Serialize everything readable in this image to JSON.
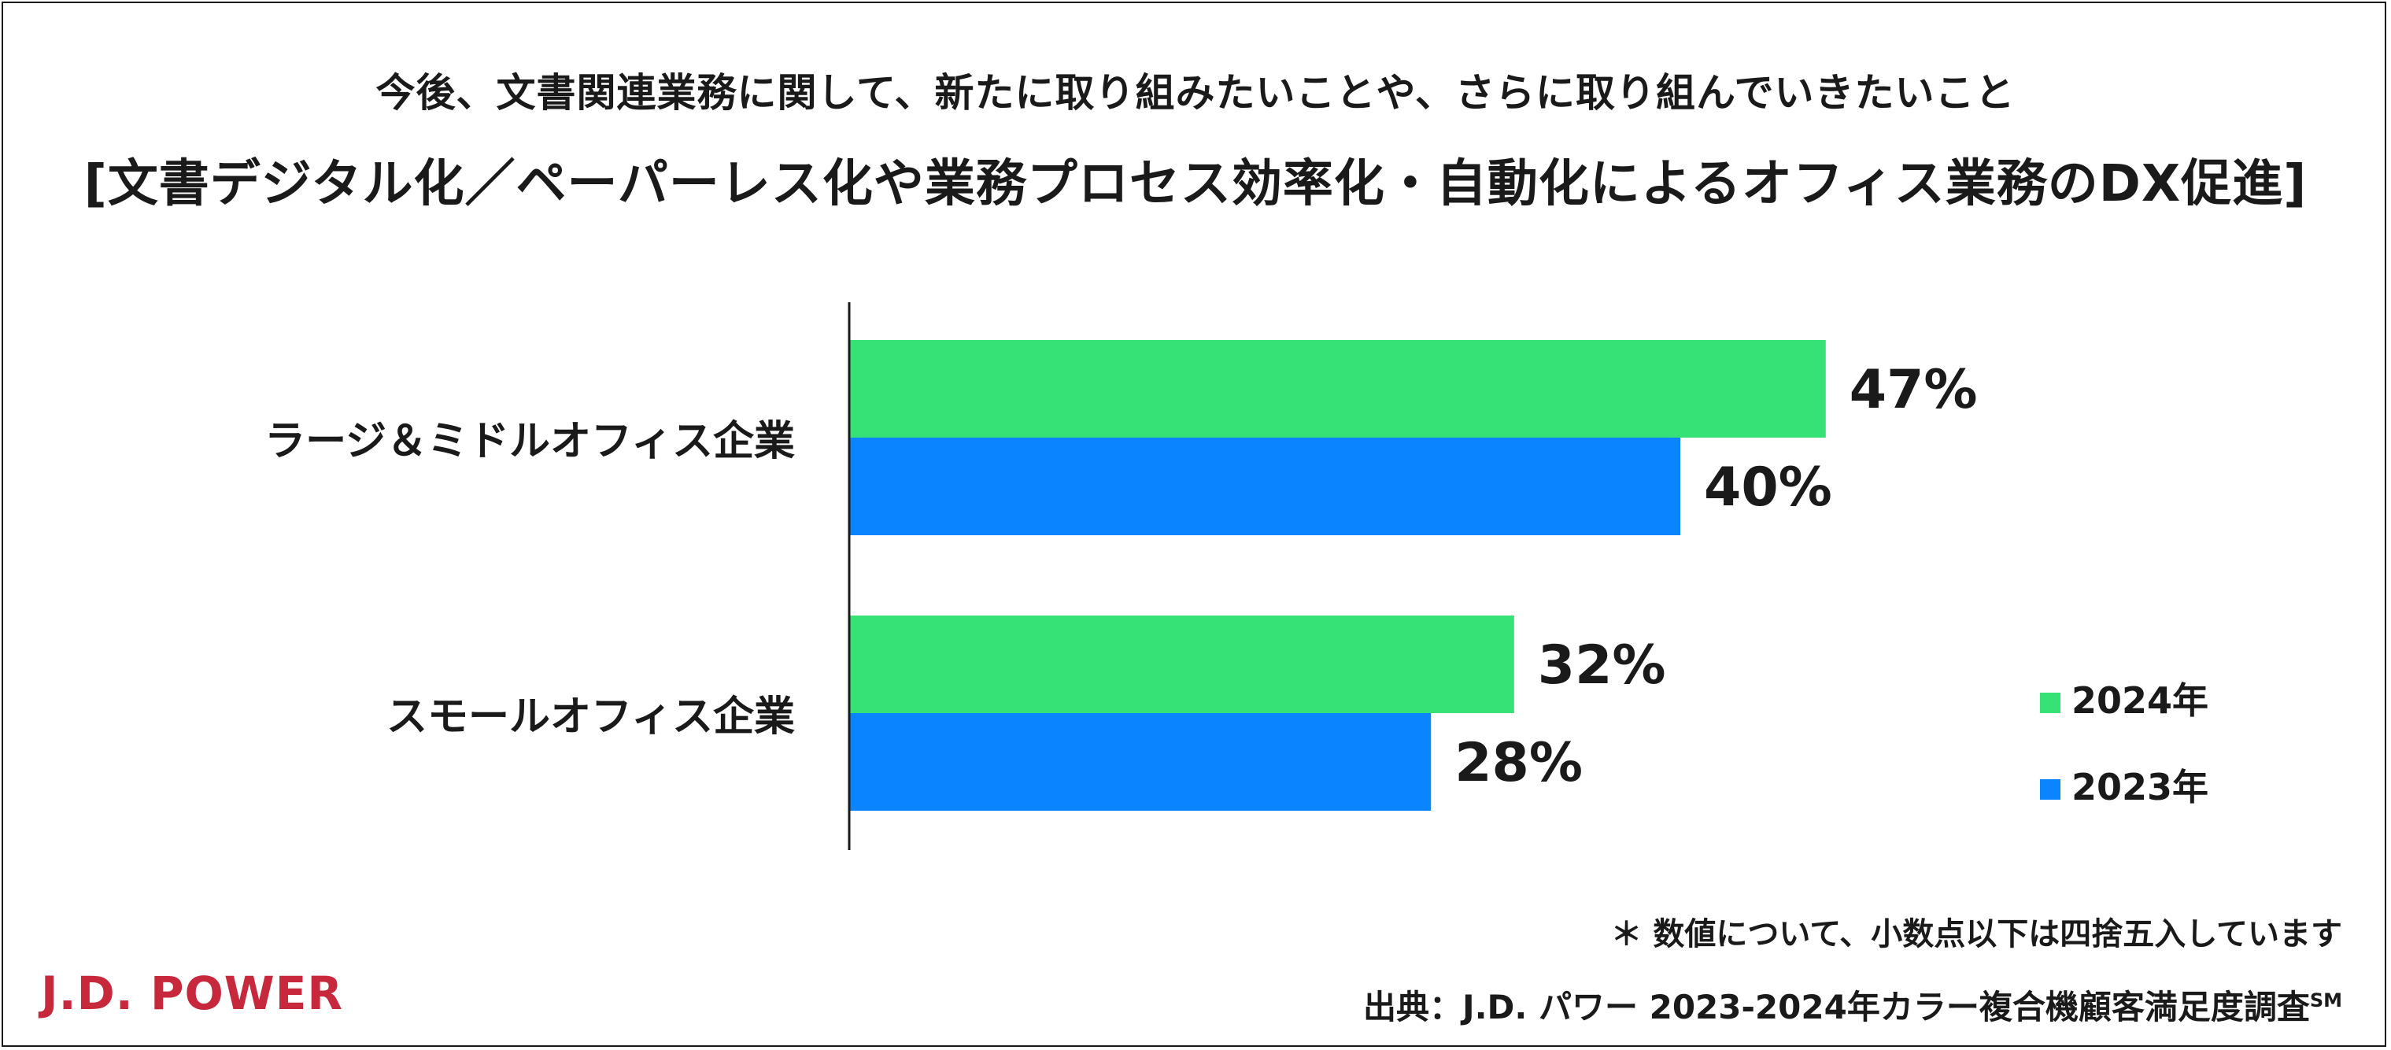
{
  "titles": {
    "line1": "今後、文書関連業務に関して、新たに取り組みたいことや、さらに取り組んでいきたいこと",
    "line2": "[文書デジタル化／ペーパーレス化や業務プロセス効率化・自動化によるオフィス業務のDX促進]"
  },
  "chart_data": {
    "type": "bar",
    "orientation": "horizontal",
    "categories": [
      "ラージ＆ミドルオフィス企業",
      "スモールオフィス企業"
    ],
    "series": [
      {
        "name": "2024年",
        "values": [
          47,
          32
        ],
        "color": "#36e275",
        "labels": [
          "47%",
          "32%"
        ]
      },
      {
        "name": "2023年",
        "values": [
          40,
          28
        ],
        "color": "#0a84ff",
        "labels": [
          "40%",
          "28%"
        ]
      }
    ],
    "xlim": [
      0,
      100
    ],
    "legend": "right",
    "grid": false
  },
  "footer": {
    "note": "＊ 数値について、小数点以下は四捨五入しています",
    "source": "出典：J.D. パワー 2023-2024年カラー複合機顧客満足度調査",
    "source_mark": "SM",
    "logo_text": "J.D. POWER",
    "logo_color": "#c8283c"
  }
}
